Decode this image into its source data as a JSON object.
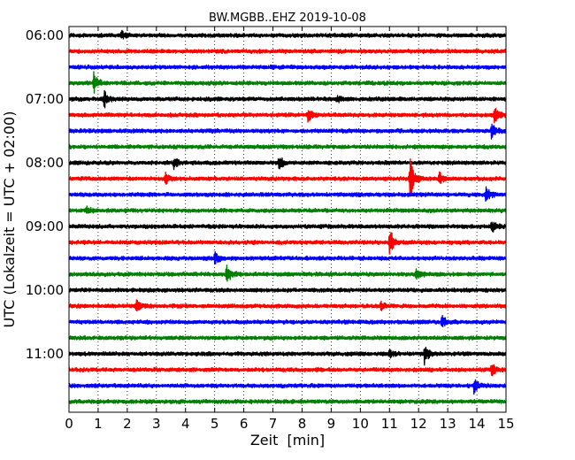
{
  "chart_data": {
    "type": "line",
    "title": "BW.MGBB..EHZ 2019-10-08",
    "xlabel": "Zeit  [min]",
    "ylabel": "UTC (Lokalzeit = UTC + 02:00)",
    "xlim": [
      0,
      15
    ],
    "x_ticks": [
      "0",
      "1",
      "2",
      "3",
      "4",
      "5",
      "6",
      "7",
      "8",
      "9",
      "10",
      "11",
      "12",
      "13",
      "14",
      "15"
    ],
    "y_ticks": [
      "06:00",
      "07:00",
      "08:00",
      "09:00",
      "10:00",
      "11:00"
    ],
    "row_minutes": 15,
    "grid": "vertical dotted, every minute",
    "trace_colors": [
      "#000000",
      "#ff0000",
      "#0000ff",
      "#008000"
    ],
    "rows": [
      {
        "start": "06:00",
        "color": "#000000",
        "events": [
          {
            "t": 1.8,
            "a": 0.35
          }
        ]
      },
      {
        "start": "06:15",
        "color": "#ff0000",
        "events": []
      },
      {
        "start": "06:30",
        "color": "#0000ff",
        "events": []
      },
      {
        "start": "06:45",
        "color": "#008000",
        "events": [
          {
            "t": 0.85,
            "a": 0.8
          }
        ]
      },
      {
        "start": "07:00",
        "color": "#000000",
        "events": [
          {
            "t": 1.2,
            "a": 0.7
          },
          {
            "t": 9.2,
            "a": 0.25
          }
        ]
      },
      {
        "start": "07:15",
        "color": "#ff0000",
        "events": [
          {
            "t": 8.2,
            "a": 0.5
          },
          {
            "t": 14.6,
            "a": 0.8
          }
        ]
      },
      {
        "start": "07:30",
        "color": "#0000ff",
        "events": [
          {
            "t": 14.5,
            "a": 0.6
          }
        ]
      },
      {
        "start": "07:45",
        "color": "#008000",
        "events": []
      },
      {
        "start": "08:00",
        "color": "#000000",
        "events": [
          {
            "t": 3.6,
            "a": 0.5
          },
          {
            "t": 7.2,
            "a": 0.6
          }
        ]
      },
      {
        "start": "08:15",
        "color": "#ff0000",
        "events": [
          {
            "t": 3.3,
            "a": 0.5
          },
          {
            "t": 11.7,
            "a": 1.8
          },
          {
            "t": 12.7,
            "a": 0.5
          }
        ]
      },
      {
        "start": "08:30",
        "color": "#0000ff",
        "events": [
          {
            "t": 14.3,
            "a": 0.6
          }
        ]
      },
      {
        "start": "08:45",
        "color": "#008000",
        "events": [
          {
            "t": 0.6,
            "a": 0.4
          }
        ]
      },
      {
        "start": "09:00",
        "color": "#000000",
        "events": [
          {
            "t": 14.5,
            "a": 0.5
          }
        ]
      },
      {
        "start": "09:15",
        "color": "#ff0000",
        "events": [
          {
            "t": 11.0,
            "a": 1.2
          }
        ]
      },
      {
        "start": "09:30",
        "color": "#0000ff",
        "events": [
          {
            "t": 5.0,
            "a": 0.5
          }
        ]
      },
      {
        "start": "09:45",
        "color": "#008000",
        "events": [
          {
            "t": 5.4,
            "a": 0.8
          },
          {
            "t": 11.9,
            "a": 0.5
          }
        ]
      },
      {
        "start": "10:00",
        "color": "#000000",
        "events": []
      },
      {
        "start": "10:15",
        "color": "#ff0000",
        "events": [
          {
            "t": 2.3,
            "a": 0.5
          },
          {
            "t": 10.7,
            "a": 0.4
          }
        ]
      },
      {
        "start": "10:30",
        "color": "#0000ff",
        "events": [
          {
            "t": 12.8,
            "a": 0.5
          }
        ]
      },
      {
        "start": "10:45",
        "color": "#008000",
        "events": []
      },
      {
        "start": "11:00",
        "color": "#000000",
        "events": [
          {
            "t": 12.2,
            "a": 0.8
          },
          {
            "t": 11.0,
            "a": 0.3
          }
        ]
      },
      {
        "start": "11:15",
        "color": "#ff0000",
        "events": [
          {
            "t": 14.5,
            "a": 0.5
          }
        ]
      },
      {
        "start": "11:30",
        "color": "#0000ff",
        "events": [
          {
            "t": 13.9,
            "a": 0.6
          }
        ]
      },
      {
        "start": "11:45",
        "color": "#008000",
        "events": []
      }
    ]
  }
}
